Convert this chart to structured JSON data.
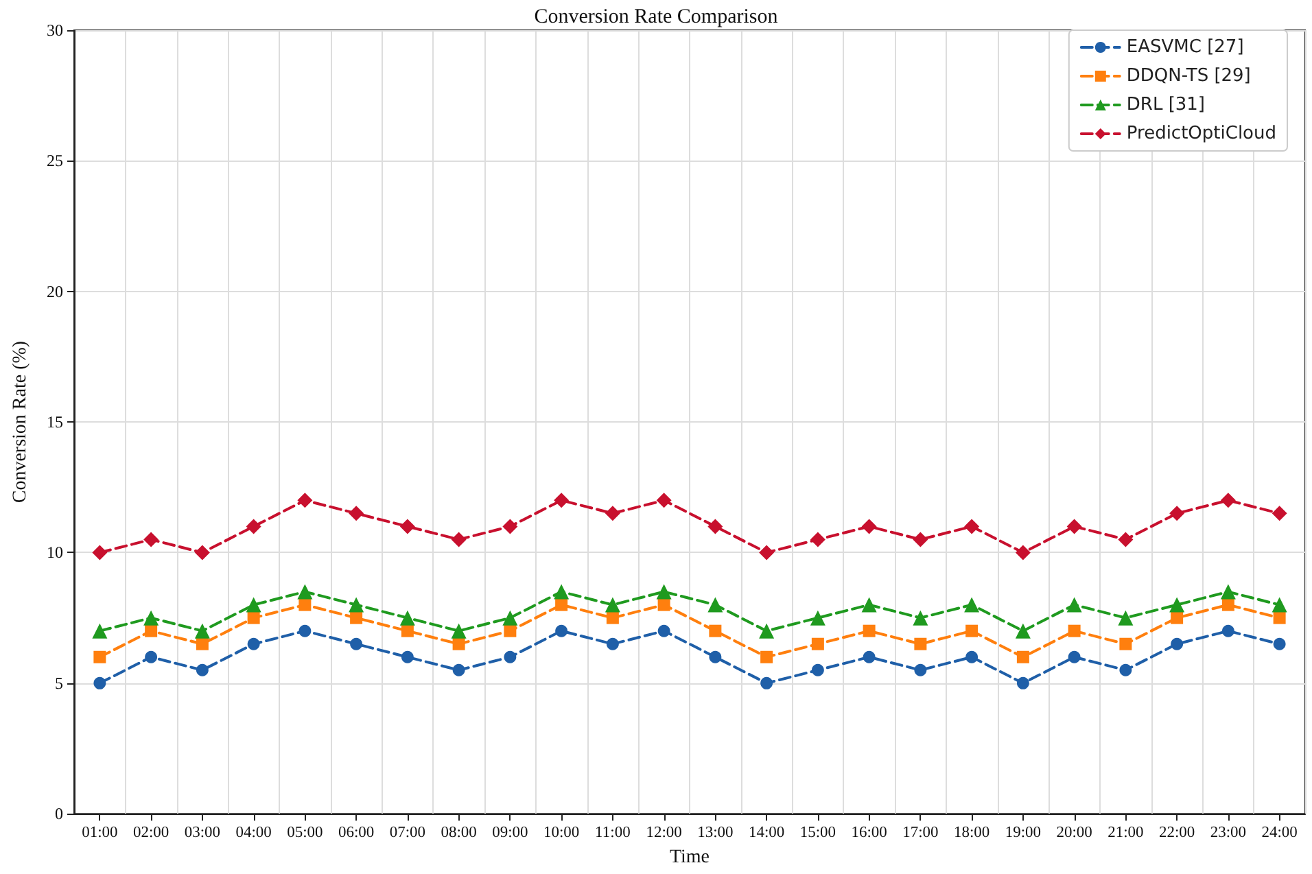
{
  "chart_data": {
    "type": "line",
    "title": "Conversion Rate Comparison",
    "xlabel": "Time",
    "ylabel": "Conversion Rate (%)",
    "categories": [
      "01:00",
      "02:00",
      "03:00",
      "04:00",
      "05:00",
      "06:00",
      "07:00",
      "08:00",
      "09:00",
      "10:00",
      "11:00",
      "12:00",
      "13:00",
      "14:00",
      "15:00",
      "16:00",
      "17:00",
      "18:00",
      "19:00",
      "20:00",
      "21:00",
      "22:00",
      "23:00",
      "24:00"
    ],
    "series": [
      {
        "name": "EASVMC [27]",
        "color": "#1f5fa8",
        "marker": "circle",
        "values": [
          5,
          6,
          5.5,
          6.5,
          7,
          6.5,
          6,
          5.5,
          6,
          7,
          6.5,
          7,
          6,
          5,
          5.5,
          6,
          5.5,
          6,
          5,
          6,
          5.5,
          6.5,
          7,
          6.5
        ]
      },
      {
        "name": "DDQN-TS [29]",
        "color": "#ff7f0e",
        "marker": "square",
        "values": [
          6,
          7,
          6.5,
          7.5,
          8,
          7.5,
          7,
          6.5,
          7,
          8,
          7.5,
          8,
          7,
          6,
          6.5,
          7,
          6.5,
          7,
          6,
          7,
          6.5,
          7.5,
          8,
          7.5
        ]
      },
      {
        "name": "DRL [31]",
        "color": "#1f9a1f",
        "marker": "triangle",
        "values": [
          7,
          7.5,
          7,
          8,
          8.5,
          8,
          7.5,
          7,
          7.5,
          8.5,
          8,
          8.5,
          8,
          7,
          7.5,
          8,
          7.5,
          8,
          7,
          8,
          7.5,
          8,
          8.5,
          8
        ]
      },
      {
        "name": "PredictOptiCloud",
        "color": "#c8102e",
        "marker": "diamond",
        "values": [
          10,
          10.5,
          10,
          11,
          12,
          11.5,
          11,
          10.5,
          11,
          12,
          11.5,
          12,
          11,
          10,
          10.5,
          11,
          10.5,
          11,
          10,
          11,
          10.5,
          11.5,
          12,
          11.5
        ]
      }
    ],
    "ylim": [
      0,
      30
    ],
    "yticks": [
      0,
      5,
      10,
      15,
      20,
      25,
      30
    ],
    "grid": true,
    "legend": "top right",
    "line_style": "dashed"
  }
}
